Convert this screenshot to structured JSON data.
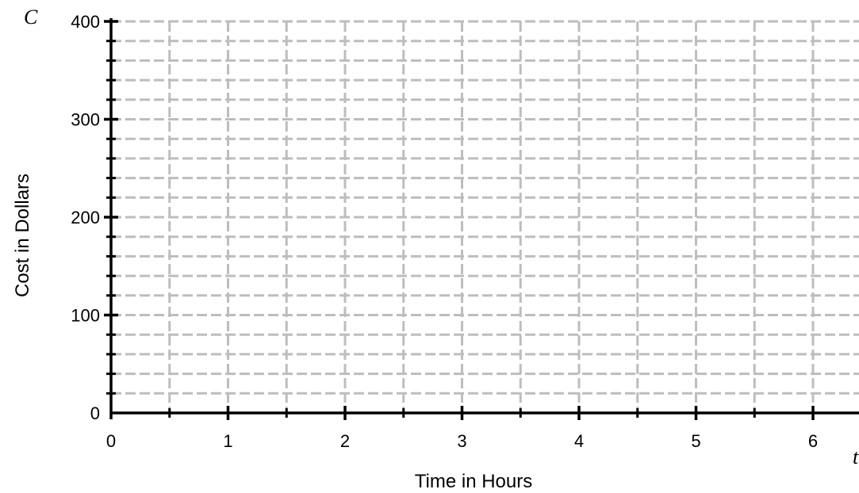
{
  "chart_data": {
    "type": "scatter",
    "title": "",
    "xlabel": "Time in Hours",
    "ylabel": "Cost in Dollars",
    "x_variable": "t",
    "y_variable": "C",
    "xlim": [
      0,
      6.4
    ],
    "ylim": [
      0,
      400
    ],
    "x_ticks": [
      0,
      1,
      2,
      3,
      4,
      5,
      6
    ],
    "y_ticks": [
      0,
      100,
      200,
      300,
      400
    ],
    "x_minor_step": 0.5,
    "y_minor_step": 20,
    "grid": true,
    "grid_style": "dashed",
    "series": []
  }
}
